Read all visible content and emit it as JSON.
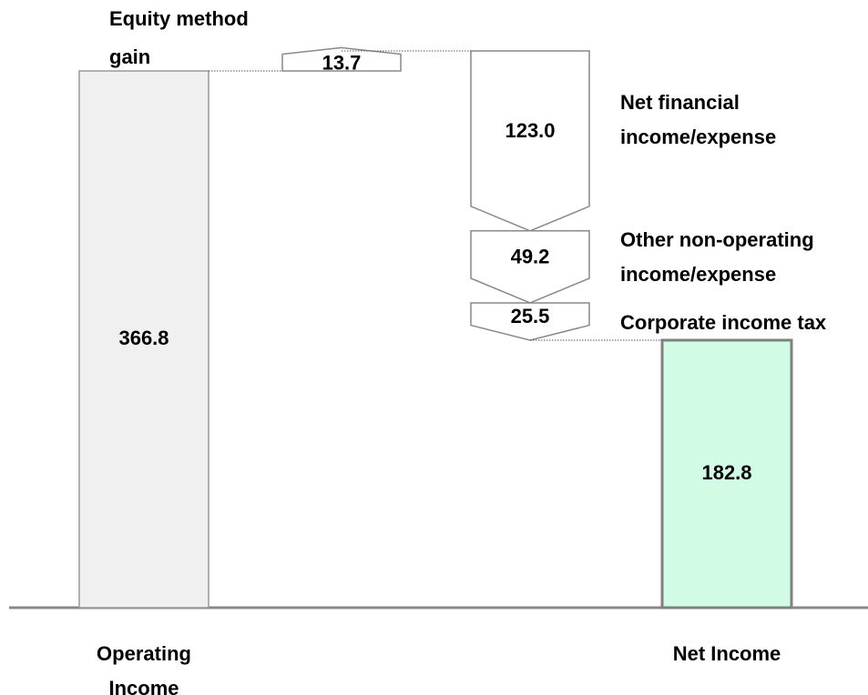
{
  "chart_data": {
    "type": "waterfall",
    "categories": [
      "Operating Income",
      "Equity method gain",
      "Net financial income/expense",
      "Other non-operating income/expense",
      "Corporate income tax",
      "Net Income"
    ],
    "values": [
      366.8,
      13.7,
      -123.0,
      -49.2,
      -25.5,
      182.8
    ],
    "value_labels": [
      "366.8",
      "13.7",
      "123.0",
      "49.2",
      "25.5",
      "182.8"
    ],
    "colors": [
      "#f0f0f0",
      "#ffffff",
      "#ffffff",
      "#ffffff",
      "#ffffff",
      "#d2fbe6"
    ]
  }
}
